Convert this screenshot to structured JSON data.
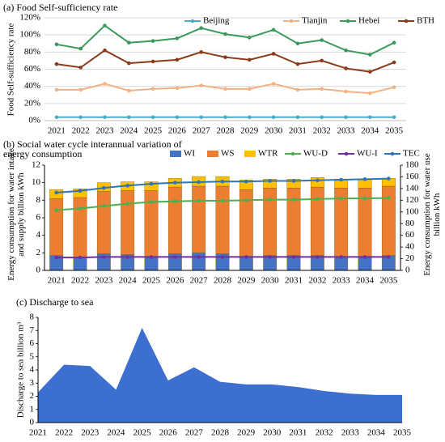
{
  "chart_data": [
    {
      "type": "line",
      "title": "(a) Food  Self-sufficiency rate",
      "y_label": "Food Self-sufficiency rate",
      "categories": [
        "2021",
        "2022",
        "2023",
        "2024",
        "2025",
        "2026",
        "2027",
        "2028",
        "2029",
        "2030",
        "2031",
        "2032",
        "2033",
        "2034",
        "2035"
      ],
      "series": [
        {
          "name": "Beijing",
          "color": "#4bacc6",
          "values": [
            4,
            4,
            4,
            4,
            4,
            4,
            4,
            4,
            4,
            4,
            4,
            4,
            4,
            4,
            4
          ]
        },
        {
          "name": "Tianjin",
          "color": "#f4b183",
          "values": [
            36,
            36,
            43,
            35,
            37,
            38,
            41,
            37,
            37,
            43,
            36,
            37,
            34,
            32,
            39
          ]
        },
        {
          "name": "Hebei",
          "color": "#3a9a5b",
          "values": [
            89,
            84,
            111,
            91,
            93,
            96,
            108,
            101,
            97,
            106,
            90,
            94,
            82,
            77,
            91
          ]
        },
        {
          "name": "BTH",
          "color": "#8b3a1a",
          "values": [
            66,
            62,
            82,
            67,
            69,
            71,
            80,
            74,
            71,
            78,
            66,
            70,
            61,
            57,
            68
          ]
        }
      ],
      "ylim": [
        0,
        120
      ],
      "yticks": [
        {
          "value": 0,
          "label": "0%"
        },
        {
          "value": 20,
          "label": "20%"
        },
        {
          "value": 40,
          "label": "40%"
        },
        {
          "value": 60,
          "label": "60%"
        },
        {
          "value": 80,
          "label": "80%"
        },
        {
          "value": 100,
          "label": "100%"
        },
        {
          "value": 120,
          "label": "120%"
        }
      ],
      "grid": true
    },
    {
      "type": "bar",
      "title": "(b) Social water cycle interannual variation of energy consumption",
      "y_label": "Energy consumption for water intake and supply billion kWh",
      "y2_label": "Energy consumption for water use billion kWh",
      "categories": [
        "2021",
        "2022",
        "2023",
        "2024",
        "2025",
        "2026",
        "2027",
        "2028",
        "2029",
        "2030",
        "2031",
        "2032",
        "2033",
        "2034",
        "2035"
      ],
      "series": [
        {
          "name": "WI",
          "color": "#4472c4",
          "type": "bar",
          "values": [
            1.7,
            1.5,
            1.9,
            1.8,
            1.6,
            1.9,
            2.0,
            1.9,
            1.6,
            1.7,
            1.7,
            1.7,
            1.6,
            1.6,
            1.7
          ]
        },
        {
          "name": "WS",
          "color": "#ed7d31",
          "type": "bar",
          "values": [
            6.5,
            6.8,
            7.1,
            7.3,
            7.5,
            7.6,
            7.6,
            7.7,
            7.6,
            7.7,
            7.7,
            7.8,
            7.8,
            7.8,
            7.9
          ]
        },
        {
          "name": "WTR",
          "color": "#ffc000",
          "type": "bar",
          "values": [
            1.0,
            1.0,
            1.0,
            1.0,
            1.0,
            1.0,
            1.1,
            1.1,
            1.1,
            1.0,
            1.0,
            1.1,
            1.0,
            1.0,
            0.9
          ]
        },
        {
          "name": "WU-D",
          "color": "#4caf50",
          "type": "line",
          "axis": "y2",
          "values": [
            103,
            106,
            110,
            114,
            117,
            118,
            119,
            119,
            120,
            121,
            121,
            122,
            123,
            123,
            124
          ]
        },
        {
          "name": "WU-I",
          "color": "#7030a0",
          "type": "line",
          "axis": "y2",
          "values": [
            22,
            22,
            23,
            23,
            23,
            23,
            23,
            23,
            23,
            23,
            23,
            23,
            23,
            23,
            23
          ]
        },
        {
          "name": "TEC",
          "color": "#2e75b6",
          "type": "line",
          "axis": "y2",
          "values": [
            133,
            136,
            141,
            145,
            148,
            150,
            151,
            152,
            152,
            153,
            153,
            154,
            155,
            156,
            157
          ]
        }
      ],
      "ylim": [
        0,
        12
      ],
      "yticks": [
        0,
        2,
        4,
        6,
        8,
        10,
        12
      ],
      "y2lim": [
        0,
        180
      ],
      "y2ticks": [
        0,
        20,
        40,
        60,
        80,
        100,
        120,
        140,
        160,
        180
      ],
      "grid": false
    },
    {
      "type": "area",
      "title": "(c) Discharge to sea",
      "y_label": "Discharge to sea billion m³",
      "categories": [
        "2021",
        "2022",
        "2023",
        "2024",
        "2025",
        "2026",
        "2027",
        "2028",
        "2029",
        "2030",
        "2031",
        "2032",
        "2033",
        "2034",
        "2035"
      ],
      "values": [
        2.3,
        4.4,
        4.3,
        2.5,
        7.2,
        3.2,
        4.2,
        3.1,
        2.9,
        2.9,
        2.7,
        2.4,
        2.2,
        2.1,
        2.1
      ],
      "color": "#3d6fd1",
      "ylim": [
        0,
        8
      ],
      "yticks": [
        0,
        1,
        2,
        3,
        4,
        5,
        6,
        7,
        8
      ],
      "grid": false
    }
  ]
}
